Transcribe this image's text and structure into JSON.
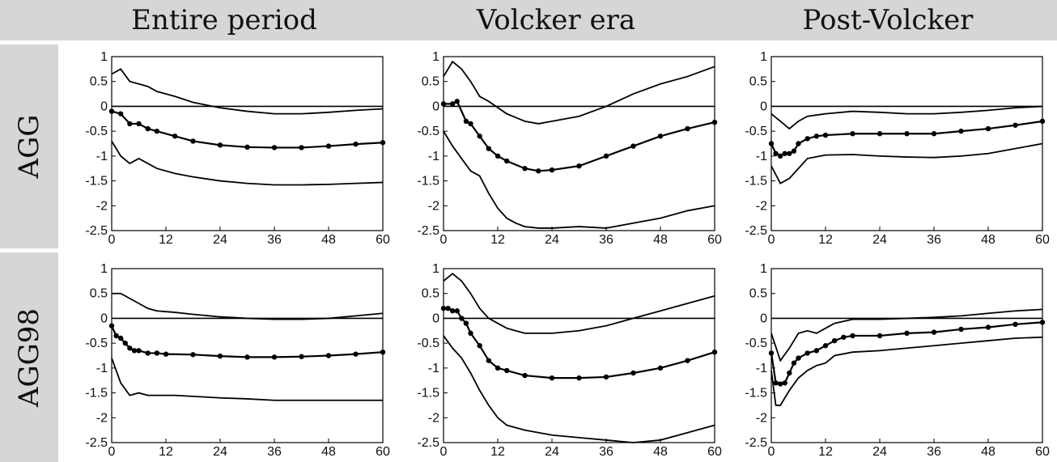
{
  "columns": [
    "Entire period",
    "Volcker era",
    "Post-Volcker"
  ],
  "rows": [
    "AGG",
    "AGG98"
  ],
  "chart_data": [
    {
      "type": "line",
      "row": "AGG",
      "column": "Entire period",
      "xlim": [
        0,
        60
      ],
      "ylim": [
        -2.5,
        1
      ],
      "xticks": [
        0,
        12,
        24,
        36,
        48,
        60
      ],
      "yticks": [
        1,
        0.5,
        0,
        -0.5,
        -1,
        -1.5,
        -2,
        -2.5
      ],
      "series": [
        {
          "role": "upper",
          "x": [
            0,
            2,
            4,
            6,
            8,
            10,
            14,
            18,
            24,
            30,
            36,
            42,
            48,
            54,
            60
          ],
          "values": [
            0.65,
            0.75,
            0.5,
            0.45,
            0.4,
            0.3,
            0.2,
            0.08,
            -0.03,
            -0.1,
            -0.15,
            -0.15,
            -0.12,
            -0.08,
            -0.05
          ]
        },
        {
          "role": "point",
          "x": [
            0,
            2,
            4,
            6,
            8,
            10,
            14,
            18,
            24,
            30,
            36,
            42,
            48,
            54,
            60
          ],
          "values": [
            -0.1,
            -0.15,
            -0.35,
            -0.35,
            -0.45,
            -0.5,
            -0.6,
            -0.7,
            -0.78,
            -0.82,
            -0.83,
            -0.83,
            -0.8,
            -0.76,
            -0.73
          ]
        },
        {
          "role": "lower",
          "x": [
            0,
            2,
            4,
            6,
            8,
            10,
            14,
            18,
            24,
            30,
            36,
            42,
            48,
            54,
            60
          ],
          "values": [
            -0.7,
            -1.0,
            -1.15,
            -1.05,
            -1.15,
            -1.25,
            -1.35,
            -1.42,
            -1.5,
            -1.55,
            -1.58,
            -1.58,
            -1.57,
            -1.55,
            -1.53
          ]
        }
      ]
    },
    {
      "type": "line",
      "row": "AGG",
      "column": "Volcker era",
      "xlim": [
        0,
        60
      ],
      "ylim": [
        -2.5,
        1
      ],
      "xticks": [
        0,
        12,
        24,
        36,
        48,
        60
      ],
      "yticks": [
        1,
        0.5,
        0,
        -0.5,
        -1,
        -1.5,
        -2,
        -2.5
      ],
      "series": [
        {
          "role": "upper",
          "x": [
            0,
            2,
            4,
            6,
            8,
            10,
            14,
            18,
            21,
            24,
            30,
            36,
            42,
            48,
            54,
            60
          ],
          "values": [
            0.6,
            0.9,
            0.75,
            0.5,
            0.2,
            0.1,
            -0.15,
            -0.3,
            -0.35,
            -0.3,
            -0.2,
            0.0,
            0.25,
            0.45,
            0.6,
            0.8
          ]
        },
        {
          "role": "point",
          "x": [
            0,
            2,
            3,
            5,
            6,
            8,
            10,
            12,
            14,
            18,
            21,
            24,
            30,
            36,
            42,
            48,
            54,
            60
          ],
          "values": [
            0.05,
            0.05,
            0.1,
            -0.3,
            -0.35,
            -0.6,
            -0.85,
            -1.0,
            -1.1,
            -1.25,
            -1.3,
            -1.28,
            -1.2,
            -1.0,
            -0.8,
            -0.6,
            -0.45,
            -0.32
          ]
        },
        {
          "role": "lower",
          "x": [
            0,
            2,
            4,
            6,
            8,
            10,
            12,
            14,
            16,
            18,
            21,
            24,
            30,
            36,
            42,
            48,
            54,
            60
          ],
          "values": [
            -0.5,
            -0.8,
            -1.05,
            -1.3,
            -1.4,
            -1.75,
            -2.05,
            -2.25,
            -2.35,
            -2.42,
            -2.45,
            -2.45,
            -2.42,
            -2.45,
            -2.35,
            -2.25,
            -2.1,
            -2.0
          ]
        }
      ]
    },
    {
      "type": "line",
      "row": "AGG",
      "column": "Post-Volcker",
      "xlim": [
        0,
        60
      ],
      "ylim": [
        -2.5,
        1
      ],
      "xticks": [
        0,
        12,
        24,
        36,
        48,
        60
      ],
      "yticks": [
        1,
        0.5,
        0,
        -0.5,
        -1,
        -1.5,
        -2,
        -2.5
      ],
      "series": [
        {
          "role": "upper",
          "x": [
            0,
            2,
            4,
            6,
            8,
            12,
            18,
            24,
            30,
            36,
            42,
            48,
            54,
            60
          ],
          "values": [
            -0.15,
            -0.3,
            -0.45,
            -0.3,
            -0.2,
            -0.15,
            -0.1,
            -0.12,
            -0.15,
            -0.15,
            -0.12,
            -0.08,
            -0.03,
            0.0
          ]
        },
        {
          "role": "point",
          "x": [
            0,
            1,
            2,
            3,
            4,
            5,
            6,
            8,
            10,
            12,
            18,
            24,
            30,
            36,
            42,
            48,
            54,
            60
          ],
          "values": [
            -0.75,
            -0.95,
            -1.0,
            -0.95,
            -0.95,
            -0.9,
            -0.75,
            -0.65,
            -0.6,
            -0.58,
            -0.55,
            -0.55,
            -0.55,
            -0.55,
            -0.5,
            -0.45,
            -0.38,
            -0.3
          ]
        },
        {
          "role": "lower",
          "x": [
            0,
            2,
            4,
            6,
            8,
            12,
            18,
            24,
            30,
            36,
            42,
            48,
            54,
            60
          ],
          "values": [
            -1.2,
            -1.55,
            -1.45,
            -1.25,
            -1.05,
            -0.98,
            -0.97,
            -1.0,
            -1.02,
            -1.03,
            -1.0,
            -0.95,
            -0.85,
            -0.75
          ]
        }
      ]
    },
    {
      "type": "line",
      "row": "AGG98",
      "column": "Entire period",
      "xlim": [
        0,
        60
      ],
      "ylim": [
        -2.5,
        1
      ],
      "xticks": [
        0,
        12,
        24,
        36,
        48,
        60
      ],
      "yticks": [
        1,
        0.5,
        0,
        -0.5,
        -1,
        -1.5,
        -2,
        -2.5
      ],
      "series": [
        {
          "role": "upper",
          "x": [
            0,
            2,
            4,
            6,
            8,
            10,
            14,
            18,
            24,
            30,
            36,
            42,
            48,
            54,
            60
          ],
          "values": [
            0.5,
            0.5,
            0.4,
            0.3,
            0.2,
            0.15,
            0.12,
            0.08,
            0.03,
            0.0,
            -0.02,
            -0.02,
            0.0,
            0.05,
            0.1
          ]
        },
        {
          "role": "point",
          "x": [
            0,
            1,
            2,
            3,
            4,
            5,
            6,
            8,
            10,
            12,
            18,
            24,
            30,
            36,
            42,
            48,
            54,
            60
          ],
          "values": [
            -0.15,
            -0.35,
            -0.4,
            -0.5,
            -0.6,
            -0.65,
            -0.65,
            -0.7,
            -0.7,
            -0.72,
            -0.73,
            -0.76,
            -0.78,
            -0.78,
            -0.77,
            -0.75,
            -0.72,
            -0.68
          ]
        },
        {
          "role": "lower",
          "x": [
            0,
            2,
            4,
            6,
            8,
            10,
            14,
            18,
            24,
            30,
            36,
            42,
            48,
            54,
            60
          ],
          "values": [
            -0.8,
            -1.3,
            -1.55,
            -1.5,
            -1.55,
            -1.55,
            -1.55,
            -1.57,
            -1.6,
            -1.62,
            -1.65,
            -1.65,
            -1.65,
            -1.65,
            -1.65
          ]
        }
      ]
    },
    {
      "type": "line",
      "row": "AGG98",
      "column": "Volcker era",
      "xlim": [
        0,
        60
      ],
      "ylim": [
        -2.5,
        1
      ],
      "xticks": [
        0,
        12,
        24,
        36,
        48,
        60
      ],
      "yticks": [
        1,
        0.5,
        0,
        -0.5,
        -1,
        -1.5,
        -2,
        -2.5
      ],
      "series": [
        {
          "role": "upper",
          "x": [
            0,
            2,
            4,
            6,
            8,
            10,
            12,
            14,
            18,
            24,
            30,
            36,
            42,
            48,
            54,
            60
          ],
          "values": [
            0.75,
            0.9,
            0.75,
            0.5,
            0.2,
            0.0,
            -0.1,
            -0.2,
            -0.3,
            -0.3,
            -0.25,
            -0.15,
            0.0,
            0.15,
            0.3,
            0.45
          ]
        },
        {
          "role": "point",
          "x": [
            0,
            1,
            2,
            3,
            4,
            5,
            6,
            8,
            10,
            12,
            14,
            18,
            24,
            30,
            36,
            42,
            48,
            54,
            60
          ],
          "values": [
            0.2,
            0.2,
            0.15,
            0.15,
            0.0,
            -0.1,
            -0.3,
            -0.55,
            -0.85,
            -1.0,
            -1.05,
            -1.15,
            -1.2,
            -1.2,
            -1.18,
            -1.1,
            -1.0,
            -0.85,
            -0.68
          ]
        },
        {
          "role": "lower",
          "x": [
            0,
            2,
            4,
            6,
            8,
            10,
            12,
            14,
            18,
            24,
            30,
            36,
            42,
            48,
            54,
            60
          ],
          "values": [
            -0.35,
            -0.6,
            -0.8,
            -1.1,
            -1.45,
            -1.75,
            -2.0,
            -2.15,
            -2.25,
            -2.35,
            -2.4,
            -2.45,
            -2.5,
            -2.45,
            -2.3,
            -2.15
          ]
        }
      ]
    },
    {
      "type": "line",
      "row": "AGG98",
      "column": "Post-Volcker",
      "xlim": [
        0,
        60
      ],
      "ylim": [
        -2.5,
        1
      ],
      "xticks": [
        0,
        12,
        24,
        36,
        48,
        60
      ],
      "yticks": [
        1,
        0.5,
        0,
        -0.5,
        -1,
        -1.5,
        -2,
        -2.5
      ],
      "series": [
        {
          "role": "upper",
          "x": [
            0,
            2,
            4,
            6,
            8,
            10,
            12,
            14,
            18,
            24,
            30,
            36,
            42,
            48,
            54,
            60
          ],
          "values": [
            -0.3,
            -0.85,
            -0.6,
            -0.3,
            -0.25,
            -0.3,
            -0.2,
            -0.1,
            -0.02,
            -0.02,
            0.0,
            0.02,
            0.05,
            0.1,
            0.15,
            0.18
          ]
        },
        {
          "role": "point",
          "x": [
            0,
            1,
            2,
            3,
            4,
            5,
            6,
            8,
            10,
            12,
            14,
            16,
            18,
            24,
            30,
            36,
            42,
            48,
            54,
            60
          ],
          "values": [
            -0.7,
            -1.3,
            -1.32,
            -1.3,
            -1.1,
            -0.9,
            -0.8,
            -0.7,
            -0.65,
            -0.55,
            -0.45,
            -0.38,
            -0.35,
            -0.35,
            -0.3,
            -0.28,
            -0.22,
            -0.18,
            -0.12,
            -0.08
          ]
        },
        {
          "role": "lower",
          "x": [
            0,
            1,
            2,
            4,
            6,
            8,
            10,
            12,
            14,
            18,
            24,
            30,
            36,
            42,
            48,
            54,
            60
          ],
          "values": [
            -1.05,
            -1.75,
            -1.75,
            -1.45,
            -1.2,
            -1.05,
            -0.95,
            -0.9,
            -0.75,
            -0.68,
            -0.65,
            -0.6,
            -0.55,
            -0.5,
            -0.45,
            -0.4,
            -0.38
          ]
        }
      ]
    }
  ]
}
